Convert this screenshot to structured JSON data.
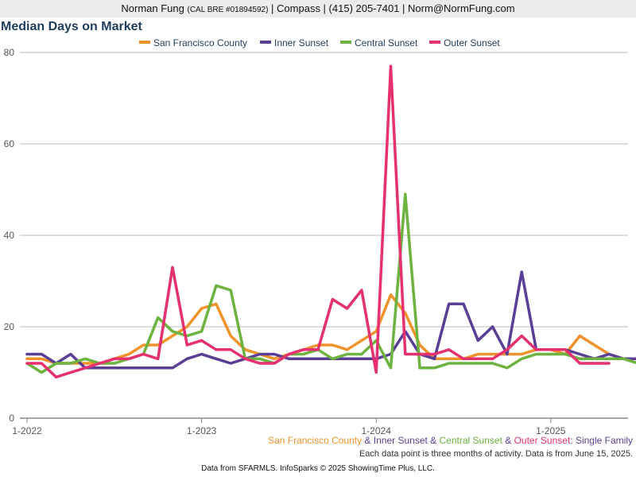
{
  "header": {
    "name": "Norman Fung",
    "license": "(CAL BRE #01894592)",
    "rest": "| Compass | (415) 205-7401 | Norm@NormFung.com"
  },
  "chart_data": {
    "type": "line",
    "title": "Median Days on Market",
    "x_start": "1-2022",
    "x_tick_labels": [
      "1-2022",
      "1-2023",
      "1-2024",
      "1-2025"
    ],
    "y_ticks": [
      0,
      20,
      40,
      60,
      80
    ],
    "ylim": [
      0,
      80
    ],
    "grid": true,
    "legend_position": "top",
    "series": [
      {
        "name": "San Francisco County",
        "color": "#f0932b",
        "values": [
          13,
          13,
          12,
          12,
          12,
          12,
          13,
          14,
          16,
          16,
          18,
          20,
          24,
          25,
          18,
          15,
          14,
          13,
          14,
          15,
          16,
          16,
          15,
          17,
          19,
          27,
          23,
          16,
          13,
          13,
          13,
          14,
          14,
          14,
          14,
          15,
          15,
          14,
          18,
          16,
          14,
          13,
          13
        ]
      },
      {
        "name": "Inner Sunset",
        "color": "#5b3e96",
        "values": [
          14,
          14,
          12,
          14,
          11,
          11,
          11,
          11,
          11,
          11,
          11,
          13,
          14,
          13,
          12,
          13,
          14,
          14,
          13,
          13,
          13,
          13,
          13,
          13,
          13,
          14,
          19,
          14,
          13,
          25,
          25,
          17,
          20,
          14,
          32,
          15,
          15,
          15,
          14,
          13,
          14,
          13,
          13
        ]
      },
      {
        "name": "Central Sunset",
        "color": "#6cb33f",
        "values": [
          12,
          10,
          12,
          12,
          13,
          12,
          12,
          13,
          14,
          22,
          19,
          18,
          19,
          29,
          28,
          13,
          13,
          12,
          14,
          14,
          15,
          13,
          14,
          14,
          17,
          11,
          49,
          11,
          11,
          12,
          12,
          12,
          12,
          11,
          13,
          14,
          14,
          14,
          13,
          13,
          13,
          13,
          12
        ]
      },
      {
        "name": "Outer Sunset",
        "color": "#e6306f",
        "values": [
          12,
          12,
          9,
          10,
          11,
          12,
          13,
          13,
          14,
          13,
          33,
          16,
          17,
          15,
          15,
          13,
          12,
          12,
          14,
          15,
          15,
          26,
          24,
          28,
          10,
          77,
          14,
          14,
          14,
          15,
          13,
          13,
          13,
          15,
          18,
          15,
          15,
          15,
          12,
          12,
          12
        ]
      }
    ]
  },
  "caption": {
    "parts": [
      {
        "text": "San Francisco County",
        "color": "#f0932b"
      },
      {
        "text": " & ",
        "color": "#5b3e96"
      },
      {
        "text": "Inner Sunset",
        "color": "#5b3e96"
      },
      {
        "text": " & ",
        "color": "#5b3e96"
      },
      {
        "text": "Central Sunset",
        "color": "#6cb33f"
      },
      {
        "text": " & ",
        "color": "#5b3e96"
      },
      {
        "text": "Outer Sunset",
        "color": "#e6306f"
      },
      {
        "text": ": Single Family",
        "color": "#5b3e96"
      }
    ]
  },
  "note": "Each data point is three months of activity. Data is from June 15, 2025.",
  "footer": "Data from SFARMLS. InfoSparks © 2025 ShowingTime Plus, LLC."
}
